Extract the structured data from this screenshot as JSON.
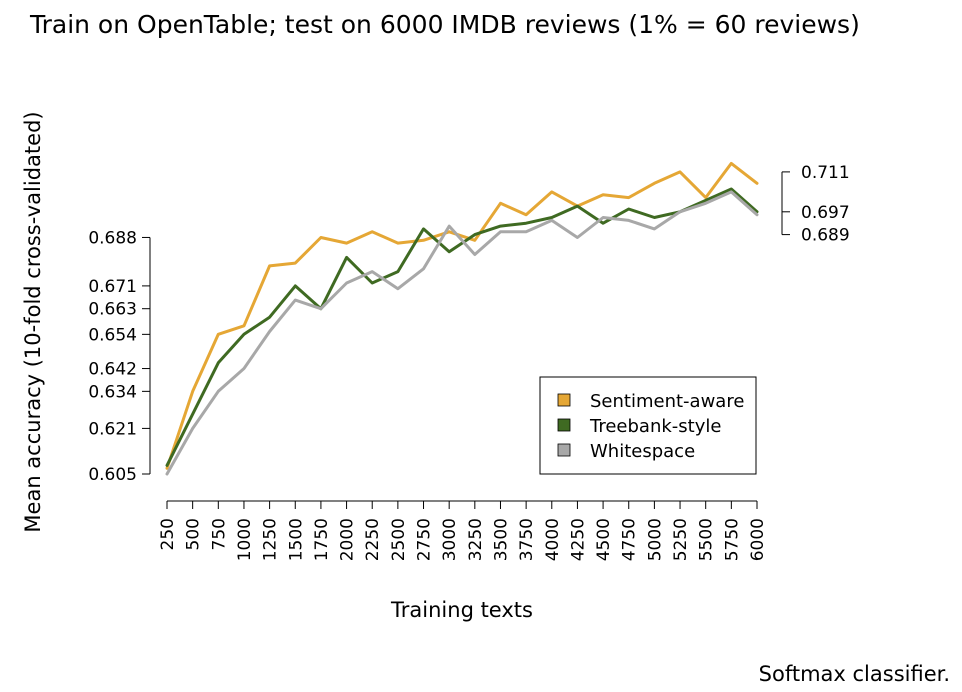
{
  "chart_data": {
    "type": "line",
    "title": "Train on OpenTable; test on 6000 IMDB reviews (1% = 60 reviews)",
    "xlabel": "Training texts",
    "ylabel": "Mean accuracy (10-fold cross-validated)",
    "x": [
      250,
      500,
      750,
      1000,
      1250,
      1500,
      1750,
      2000,
      2250,
      2500,
      2750,
      3000,
      3250,
      3500,
      3750,
      4000,
      4250,
      4500,
      4750,
      5000,
      5250,
      5500,
      5750,
      6000
    ],
    "x_tick_labels": [
      "250",
      "500",
      "750",
      "1000",
      "1250",
      "1500",
      "1750",
      "2000",
      "2250",
      "2500",
      "2750",
      "3000",
      "3250",
      "3500",
      "3750",
      "4000",
      "4250",
      "4500",
      "4750",
      "5000",
      "5250",
      "5500",
      "5750",
      "6000"
    ],
    "ylim": [
      0.605,
      0.716
    ],
    "y_ticks_left": [
      "0.605",
      "0.621",
      "0.634",
      "0.642",
      "0.654",
      "0.663",
      "0.671",
      "0.688"
    ],
    "y_ticks_right": [
      "0.689",
      "0.697",
      "0.711"
    ],
    "grid": false,
    "legend_position": "bottom-right",
    "series": [
      {
        "name": "Sentiment-aware",
        "color": "#E5A735",
        "values": [
          0.607,
          0.634,
          0.654,
          0.657,
          0.678,
          0.679,
          0.688,
          0.686,
          0.69,
          0.686,
          0.687,
          0.69,
          0.687,
          0.7,
          0.696,
          0.704,
          0.699,
          0.703,
          0.702,
          0.707,
          0.711,
          0.702,
          0.714,
          0.707
        ]
      },
      {
        "name": "Treebank-style",
        "color": "#3F6A22",
        "values": [
          0.608,
          0.626,
          0.644,
          0.654,
          0.66,
          0.671,
          0.663,
          0.681,
          0.672,
          0.676,
          0.691,
          0.683,
          0.689,
          0.692,
          0.693,
          0.695,
          0.699,
          0.693,
          0.698,
          0.695,
          0.697,
          0.701,
          0.705,
          0.697
        ]
      },
      {
        "name": "Whitespace",
        "color": "#A8A8A8",
        "values": [
          0.605,
          0.621,
          0.634,
          0.642,
          0.655,
          0.666,
          0.663,
          0.672,
          0.676,
          0.67,
          0.677,
          0.692,
          0.682,
          0.69,
          0.69,
          0.694,
          0.688,
          0.695,
          0.694,
          0.691,
          0.697,
          0.7,
          0.704,
          0.696
        ]
      }
    ]
  },
  "caption": "Softmax classifier."
}
